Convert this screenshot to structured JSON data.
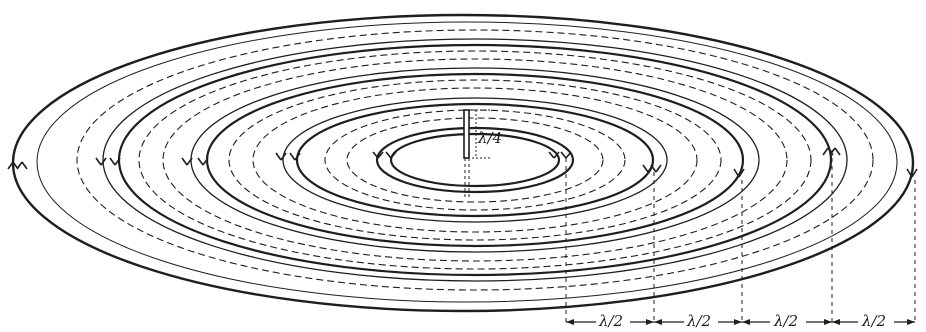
{
  "diagram": {
    "ink_color": "#1e1e1e",
    "background_color": "#ffffff",
    "antenna_label": "λ/4",
    "half_wavelength_labels": [
      "λ/2",
      "λ/2",
      "λ/2",
      "λ/2"
    ]
  }
}
